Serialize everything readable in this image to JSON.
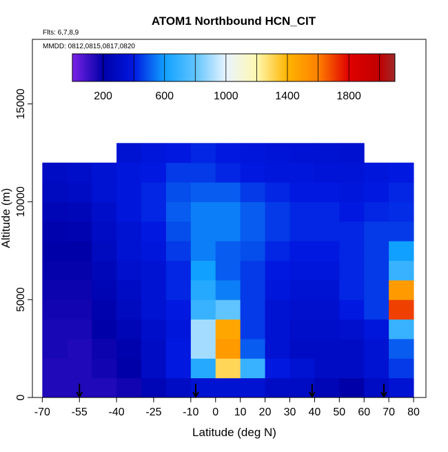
{
  "chart_data": {
    "type": "heatmap",
    "title": "ATOM1 Northbound HCN_CIT",
    "subtitle": "Flts: 6,7,8,9",
    "annotation": "MMDD: 0812,0815,0817,0820",
    "xlabel": "Latitude (deg N)",
    "ylabel": "Altitude (m)",
    "xlim": [
      -74,
      85
    ],
    "ylim": [
      0,
      18300
    ],
    "xticks": [
      -70,
      -55,
      -40,
      -25,
      -10,
      0,
      10,
      20,
      30,
      40,
      50,
      60,
      70,
      80
    ],
    "yticks": [
      0,
      5000,
      10000,
      15000
    ],
    "x_edges": [
      -70,
      -60,
      -50,
      -40,
      -30,
      -20,
      -10,
      0,
      10,
      20,
      30,
      40,
      50,
      60,
      70,
      80
    ],
    "y_edges": [
      0,
      1000,
      2000,
      3000,
      4000,
      5000,
      6000,
      7000,
      8000,
      9000,
      10000,
      11000,
      12000,
      13000
    ],
    "values": [
      [
        150,
        150,
        150,
        170,
        250,
        300,
        350,
        350,
        350,
        300,
        300,
        250,
        200,
        300,
        350
      ],
      [
        150,
        150,
        170,
        200,
        300,
        400,
        650,
        1300,
        700,
        400,
        350,
        300,
        300,
        350,
        450
      ],
      [
        160,
        150,
        180,
        220,
        300,
        400,
        900,
        1500,
        500,
        350,
        300,
        300,
        300,
        350,
        500
      ],
      [
        160,
        160,
        200,
        250,
        320,
        380,
        900,
        1450,
        450,
        350,
        320,
        320,
        330,
        380,
        700
      ],
      [
        170,
        170,
        220,
        280,
        350,
        400,
        700,
        800,
        450,
        350,
        330,
        330,
        400,
        450,
        1700
      ],
      [
        180,
        180,
        240,
        300,
        350,
        420,
        650,
        550,
        450,
        380,
        350,
        350,
        420,
        450,
        1500
      ],
      [
        190,
        190,
        260,
        330,
        350,
        420,
        600,
        500,
        450,
        400,
        380,
        380,
        420,
        450,
        700
      ],
      [
        200,
        200,
        280,
        350,
        380,
        450,
        550,
        500,
        480,
        420,
        400,
        400,
        420,
        450,
        600
      ],
      [
        220,
        230,
        300,
        350,
        400,
        480,
        550,
        550,
        500,
        450,
        420,
        420,
        420,
        450,
        450
      ],
      [
        250,
        260,
        320,
        380,
        420,
        500,
        550,
        550,
        500,
        450,
        420,
        420,
        400,
        420,
        430
      ],
      [
        280,
        300,
        350,
        380,
        420,
        480,
        500,
        500,
        450,
        420,
        400,
        400,
        380,
        400,
        420
      ],
      [
        300,
        320,
        350,
        380,
        400,
        450,
        450,
        420,
        400,
        380,
        380,
        370,
        370,
        380,
        400
      ],
      [
        null,
        null,
        null,
        350,
        380,
        400,
        420,
        400,
        380,
        370,
        360,
        350,
        340,
        null,
        null
      ]
    ],
    "colorscale": [
      {
        "value": 0,
        "color": "#7a22e6"
      },
      {
        "value": 200,
        "color": "#0000a8"
      },
      {
        "value": 400,
        "color": "#0018e0"
      },
      {
        "value": 600,
        "color": "#10a0ff"
      },
      {
        "value": 800,
        "color": "#60c4ff"
      },
      {
        "value": 1000,
        "color": "#e8f4ff"
      },
      {
        "value": 1200,
        "color": "#fff8b0"
      },
      {
        "value": 1400,
        "color": "#ffb400"
      },
      {
        "value": 1600,
        "color": "#ff8000"
      },
      {
        "value": 1800,
        "color": "#e00000"
      },
      {
        "value": 2000,
        "color": "#c00000"
      },
      {
        "value": 2100,
        "color": "#a02828"
      }
    ],
    "clim": [
      0,
      2100
    ],
    "colorbar_ticks": [
      200,
      600,
      1000,
      1400,
      1800
    ],
    "colorbar_lines": [
      200,
      400,
      600,
      800,
      1000,
      1200,
      1400,
      1600,
      1800,
      2000
    ],
    "arrows_lat": [
      -55,
      -8,
      39,
      68
    ]
  }
}
